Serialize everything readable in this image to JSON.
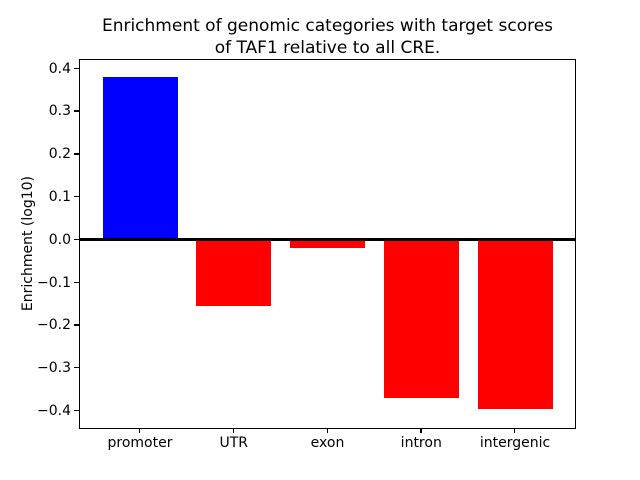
{
  "title": {
    "line1": "Enrichment of genomic categories with target scores",
    "line2": "of TAF1 relative to all CRE."
  },
  "chart_data": {
    "type": "bar",
    "title": "Enrichment of genomic categories with target scores\nof TAF1 relative to all CRE.",
    "categories": [
      "promoter",
      "UTR",
      "exon",
      "intron",
      "intergenic"
    ],
    "values": [
      0.38,
      -0.155,
      -0.02,
      -0.37,
      -0.395
    ],
    "bar_colors": [
      "#0000ff",
      "#ff0000",
      "#ff0000",
      "#ff0000",
      "#ff0000"
    ],
    "positive_color": "#0000ff",
    "negative_color": "#ff0000",
    "xlabel": "",
    "ylabel": "Enrichment (log10)",
    "ylim": [
      -0.44,
      0.42
    ],
    "yticks": [
      0.4,
      0.3,
      0.2,
      0.1,
      0.0,
      -0.1,
      -0.2,
      -0.3,
      -0.4
    ],
    "ytick_labels": [
      "0.4",
      "0.3",
      "0.2",
      "0.1",
      "0.0",
      "−0.1",
      "−0.2",
      "−0.3",
      "−0.4"
    ],
    "grid": false,
    "legend_position": "none",
    "zero_line": true,
    "zero_line_color": "#000000",
    "background_color": "#ffffff"
  }
}
